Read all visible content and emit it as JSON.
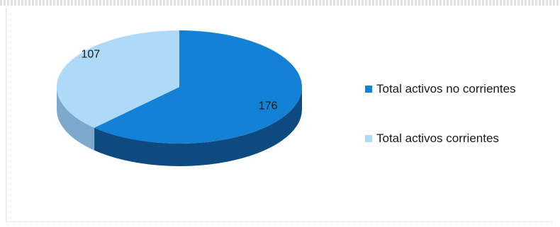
{
  "chart_data": {
    "type": "pie",
    "style": "3d-oval",
    "categories": [
      "Total activos no corrientes",
      "Total activos corrientes"
    ],
    "values": [
      176,
      107
    ],
    "colors": [
      "#1382d6",
      "#aedaf8"
    ],
    "side_colors": [
      "#0d4a80",
      "#7ca9cc"
    ],
    "data_labels": [
      "176",
      "107"
    ],
    "legend_position": "right"
  }
}
